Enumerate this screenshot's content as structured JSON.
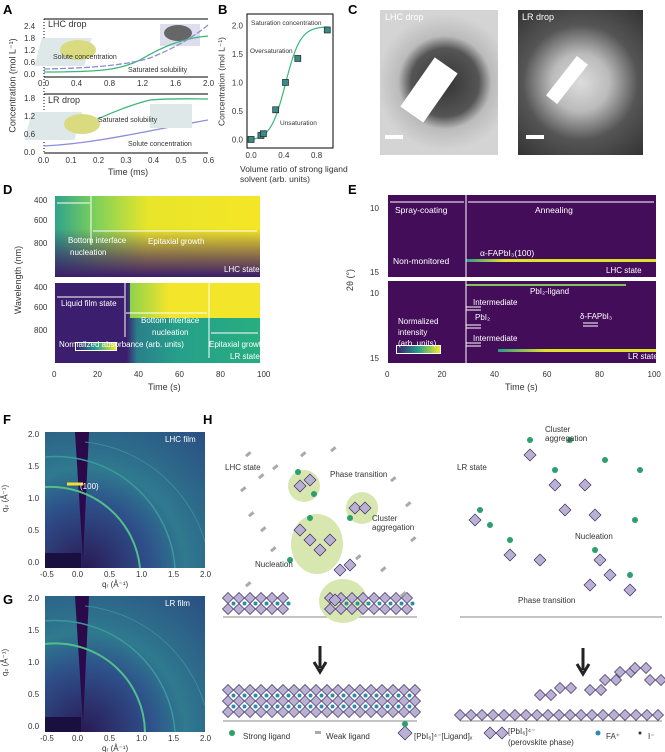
{
  "panels": {
    "a": "A",
    "b": "B",
    "c": "C",
    "d": "D",
    "e": "E",
    "f": "F",
    "g": "G",
    "h": "H"
  },
  "panel_a": {
    "top_title": "LHC drop",
    "bottom_title": "LR drop",
    "ylabel": "Concentration (mol L⁻¹)",
    "xlabel": "Time (ms)",
    "top_yticks": [
      "0.0",
      "0.6",
      "1.2",
      "1.8",
      "2.4"
    ],
    "top_xticks": [
      "0.0",
      "0.4",
      "0.8",
      "1.2",
      "1.6",
      "2.0"
    ],
    "bottom_yticks": [
      "0.0",
      "0.6",
      "1.2",
      "1.8"
    ],
    "bottom_xticks": [
      "0.0",
      "0.1",
      "0.2",
      "0.3",
      "0.4",
      "0.5",
      "0.6"
    ],
    "solute": "Solute concentration",
    "saturated": "Saturated solubility",
    "colors": {
      "solubility": "#3cb878",
      "solute": "#8c8cd8"
    }
  },
  "chart_data": {
    "type": "scatter",
    "xlabel": "Volume ratio of strong ligand solvent (arb. units)",
    "ylabel": "Concentration (mol L⁻¹)",
    "xticks": [
      "0.0",
      "0.4",
      "0.8"
    ],
    "yticks": [
      "0.0",
      "0.5",
      "1.0",
      "1.5",
      "2.0"
    ],
    "xlim": [
      -0.05,
      1.0
    ],
    "ylim": [
      -0.15,
      2.2
    ],
    "x": [
      0.0,
      0.12,
      0.15,
      0.3,
      0.42,
      0.57,
      0.93
    ],
    "y": [
      0.0,
      0.07,
      0.1,
      0.52,
      1.0,
      1.42,
      1.92
    ],
    "annotations": [
      "Saturation concentration",
      "Oversaturation",
      "Unsaturation"
    ],
    "colors": {
      "marker": "#3a8a8a",
      "line": "#3cb878"
    }
  },
  "panel_c": {
    "left": "LHC drop",
    "right": "LR drop"
  },
  "panel_d": {
    "ylabel": "Wavelength (nm)",
    "xlabel": "Time (s)",
    "yticks": [
      "400",
      "600",
      "800"
    ],
    "xticks": [
      "0",
      "20",
      "40",
      "60",
      "80",
      "100"
    ],
    "top": {
      "l1": "Bottom interface",
      "l2": "nucleation",
      "growth": "Epitaxial growth",
      "state": "LHC state"
    },
    "bottom": {
      "liquid": "Liquid film state",
      "l1": "Bottom interface",
      "l2": "nucleation",
      "growth": "Epitaxial growth",
      "state": "LR state",
      "cbar": "Normalized absorbance (arb. units)"
    }
  },
  "panel_e": {
    "ylabel": "2θ (°)",
    "xlabel": "Time (s)",
    "yticks": [
      "10",
      "15"
    ],
    "xticks": [
      "0",
      "20",
      "40",
      "60",
      "80",
      "100"
    ],
    "spray": "Spray-coating",
    "anneal": "Annealing",
    "nonmon": "Non-monitored",
    "alpha": "α-FAPbI₃(100)",
    "lhc": "LHC state",
    "pbl": "PbI₂-ligand",
    "inter1": "Intermediate",
    "pbi2": "PbI₂",
    "inter2": "Intermediate",
    "delta": "δ-FAPbI₃",
    "cb1": "Normalized",
    "cb2": "intensity",
    "cb3": "(arb. units)",
    "lr": "LR state"
  },
  "panel_f": {
    "title": "LHC film",
    "peak": "(100)",
    "ylabel": "q₂ (Å⁻¹)",
    "xlabel": "qᵣ (Å⁻¹)",
    "yticks": [
      "0.0",
      "0.5",
      "1.0",
      "1.5",
      "2.0"
    ],
    "xticks": [
      "-0.5",
      "0.0",
      "0.5",
      "1.0",
      "1.5",
      "2.0"
    ]
  },
  "panel_g": {
    "title": "LR film",
    "ylabel": "q₂ (Å⁻¹)",
    "xlabel": "qᵣ (Å⁻¹)",
    "yticks": [
      "0.0",
      "0.5",
      "1.0",
      "1.5",
      "2.0"
    ],
    "xticks": [
      "-0.5",
      "0.0",
      "0.5",
      "1.0",
      "1.5",
      "2.0"
    ]
  },
  "panel_h": {
    "lhc": "LHC state",
    "lr": "LR state",
    "phase1": "Phase transition",
    "cluster1": "Cluster aggregation",
    "nuc1": "Nucleation",
    "cluster2": "Cluster aggregation",
    "nuc2": "Nucleation",
    "phase2": "Phase transition",
    "legend": {
      "strong": "Strong ligand",
      "weak": "Weak ligand",
      "complex": "[PbI₆]⁴⁻[Ligand]ₓ",
      "perov1": "[PbI₆]⁴⁻",
      "perov2": "(perovskite phase)",
      "fa": "FA⁺",
      "i": "I⁻"
    },
    "colors": {
      "octahedron": "#b9b0d4",
      "strong": "#2ca06a",
      "fa": "#2b8cb0",
      "halo": "#d8e6b0"
    }
  }
}
